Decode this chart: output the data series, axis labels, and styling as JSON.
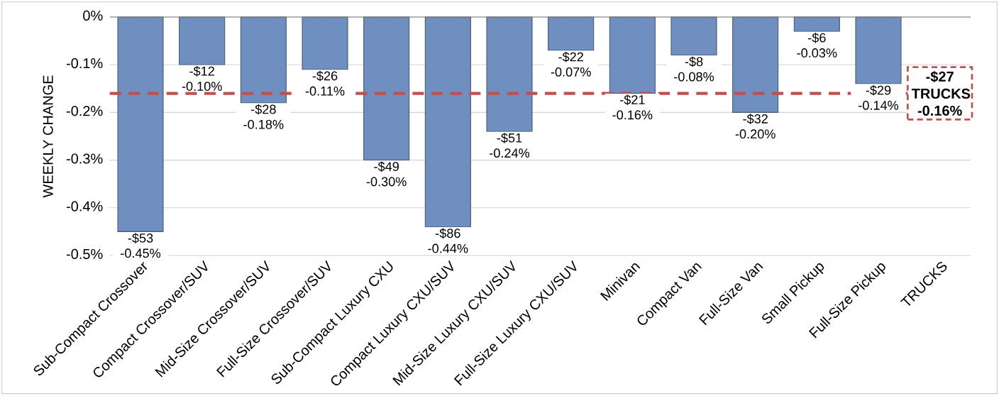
{
  "chart_data": {
    "type": "bar",
    "ylabel": "WEEKLY CHANGE",
    "categories": [
      "Sub-Compact Crossover",
      "Compact Crossover/SUV",
      "Mid-Size Crossover/SUV",
      "Full-Size Crossover/SUV",
      "Sub-Compact Luxury CXU",
      "Compact Luxury CXU/SUV",
      "Mid-Size Luxury CXU/SUV",
      "Full-Size Luxury CXU/SUV",
      "Minivan",
      "Compact Van",
      "Full-Size Van",
      "Small Pickup",
      "Full-Size Pickup",
      "TRUCKS"
    ],
    "values": [
      -0.45,
      -0.1,
      -0.18,
      -0.11,
      -0.3,
      -0.44,
      -0.24,
      -0.07,
      -0.16,
      -0.08,
      -0.2,
      -0.03,
      -0.14,
      null
    ],
    "value_labels": [
      "-$53 -0.45%",
      "-$12 -0.10%",
      "-$28 -0.18%",
      "-$26 -0.11%",
      "-$49 -0.30%",
      "-$86 -0.44%",
      "-$51 -0.24%",
      "-$22 -0.07%",
      "-$21 -0.16%",
      "-$8 -0.08%",
      "-$32 -0.20%",
      "-$6 -0.03%",
      "-$29 -0.14%",
      null
    ],
    "color": "#6f8fc0",
    "ylim": [
      -0.5,
      0
    ],
    "yticks": [
      {
        "value": 0,
        "label": "0%"
      },
      {
        "value": -0.1,
        "label": "-0.1%"
      },
      {
        "value": -0.2,
        "label": "-0.2%"
      },
      {
        "value": -0.3,
        "label": "-0.3%"
      },
      {
        "value": -0.4,
        "label": "-0.4%"
      },
      {
        "value": -0.5,
        "label": "-0.5%"
      }
    ],
    "grid": "y",
    "ref_lines": [
      {
        "axis": "y",
        "value": -0.16,
        "label": "-$27 TRUCKS -0.16%",
        "color": "#c0504d",
        "line_style": "dashed"
      }
    ]
  }
}
